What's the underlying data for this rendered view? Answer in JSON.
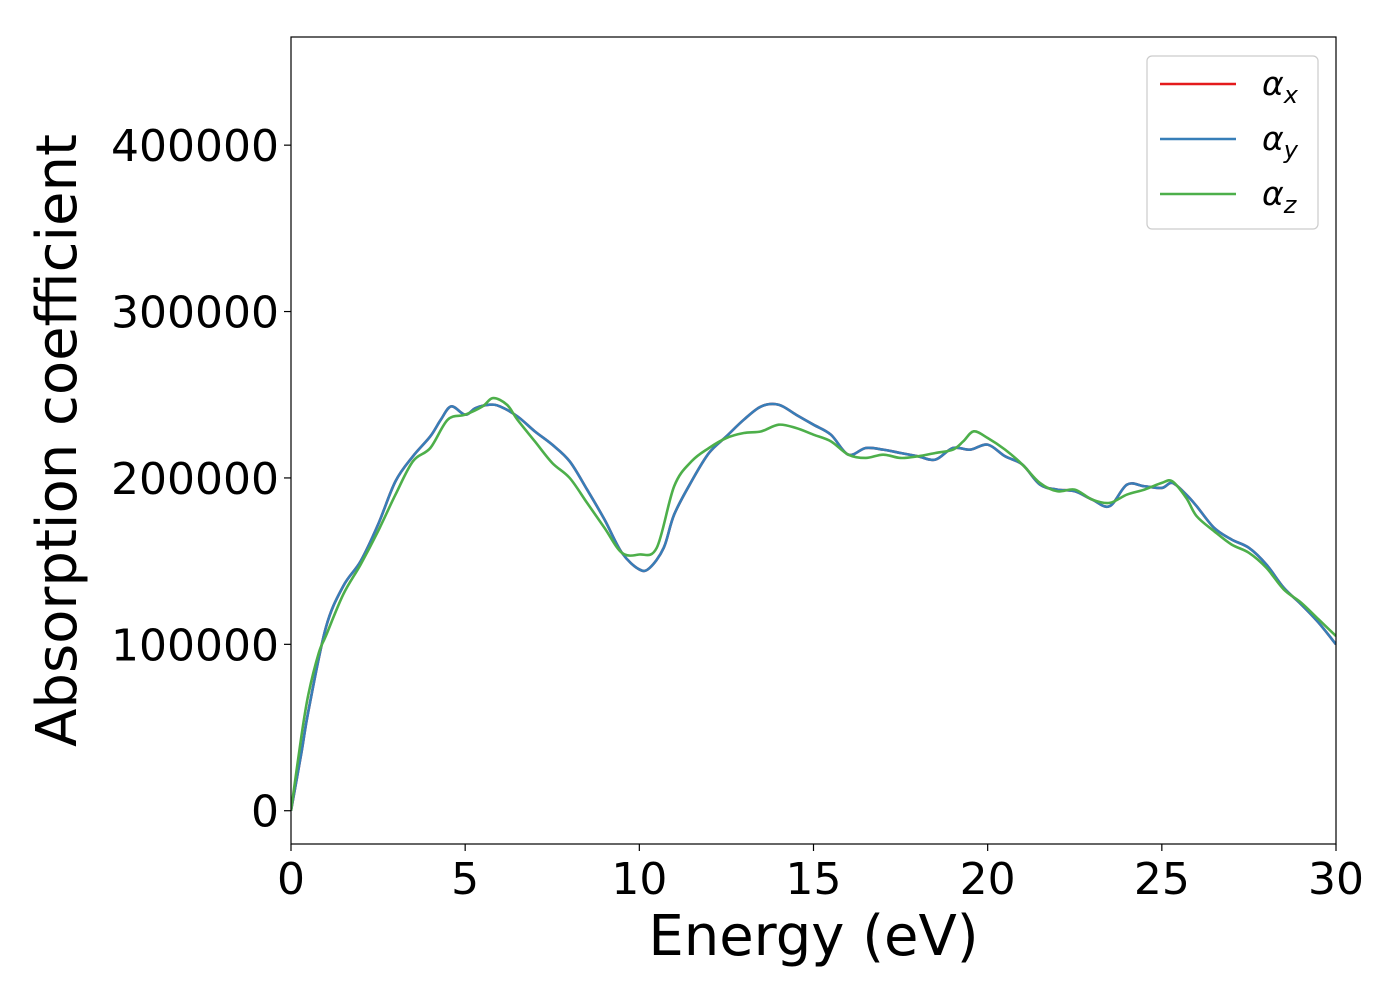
{
  "chart_data": {
    "type": "line",
    "title": "",
    "xlabel": "Energy (eV)",
    "ylabel": "Absorption coefficient",
    "xlim": [
      0,
      30
    ],
    "ylim": [
      -20000,
      465000
    ],
    "xticks": [
      0,
      5,
      10,
      15,
      20,
      25,
      30
    ],
    "yticks": [
      0,
      100000,
      200000,
      300000,
      400000
    ],
    "xtick_labels": [
      "0",
      "5",
      "10",
      "15",
      "20",
      "25",
      "30"
    ],
    "ytick_labels": [
      "0",
      "100000",
      "200000",
      "300000",
      "400000"
    ],
    "grid": false,
    "legend_position": "top-right",
    "series": [
      {
        "name": "αx",
        "symbol": "α",
        "subscript": "x",
        "color": "#e41a1c",
        "x": [
          0,
          0.3,
          0.5,
          1.0,
          1.5,
          2.0,
          2.5,
          3.0,
          3.5,
          4.0,
          4.3,
          4.6,
          5.0,
          5.3,
          5.7,
          6.0,
          6.5,
          7.0,
          7.5,
          8.0,
          8.5,
          9.0,
          9.5,
          10.0,
          10.3,
          10.7,
          11.0,
          11.5,
          12.0,
          12.5,
          13.0,
          13.5,
          14.0,
          14.5,
          15.0,
          15.5,
          16.0,
          16.5,
          17.0,
          17.5,
          18.0,
          18.5,
          19.0,
          19.5,
          20.0,
          20.5,
          21.0,
          21.5,
          22.0,
          22.5,
          23.0,
          23.5,
          24.0,
          24.5,
          25.0,
          25.3,
          25.7,
          26.0,
          26.5,
          27.0,
          27.5,
          28.0,
          28.5,
          29.0,
          29.5,
          30.0
        ],
        "y": [
          0,
          35000,
          60000,
          110000,
          135000,
          150000,
          172000,
          198000,
          213000,
          225000,
          235000,
          243000,
          238000,
          242000,
          244000,
          243000,
          237000,
          228000,
          220000,
          210000,
          193000,
          175000,
          155000,
          145000,
          146000,
          158000,
          178000,
          198000,
          215000,
          225000,
          235000,
          243000,
          244000,
          238000,
          232000,
          226000,
          214000,
          218000,
          217000,
          215000,
          213000,
          211000,
          218000,
          217000,
          220000,
          213000,
          208000,
          196000,
          193000,
          192000,
          187000,
          183000,
          196000,
          195000,
          194000,
          197000,
          190000,
          183000,
          170000,
          163000,
          158000,
          148000,
          134000,
          124000,
          113000,
          100000
        ]
      },
      {
        "name": "αy",
        "symbol": "α",
        "subscript": "y",
        "color": "#377eb8",
        "x": [
          0,
          0.3,
          0.5,
          1.0,
          1.5,
          2.0,
          2.5,
          3.0,
          3.5,
          4.0,
          4.3,
          4.6,
          5.0,
          5.3,
          5.7,
          6.0,
          6.5,
          7.0,
          7.5,
          8.0,
          8.5,
          9.0,
          9.5,
          10.0,
          10.3,
          10.7,
          11.0,
          11.5,
          12.0,
          12.5,
          13.0,
          13.5,
          14.0,
          14.5,
          15.0,
          15.5,
          16.0,
          16.5,
          17.0,
          17.5,
          18.0,
          18.5,
          19.0,
          19.5,
          20.0,
          20.5,
          21.0,
          21.5,
          22.0,
          22.5,
          23.0,
          23.5,
          24.0,
          24.5,
          25.0,
          25.3,
          25.7,
          26.0,
          26.5,
          27.0,
          27.5,
          28.0,
          28.5,
          29.0,
          29.5,
          30.0
        ],
        "y": [
          0,
          35000,
          60000,
          110000,
          135000,
          150000,
          172000,
          198000,
          213000,
          225000,
          235000,
          243000,
          238000,
          242000,
          244000,
          243000,
          237000,
          228000,
          220000,
          210000,
          193000,
          175000,
          155000,
          145000,
          146000,
          158000,
          178000,
          198000,
          215000,
          225000,
          235000,
          243000,
          244000,
          238000,
          232000,
          226000,
          214000,
          218000,
          217000,
          215000,
          213000,
          211000,
          218000,
          217000,
          220000,
          213000,
          208000,
          196000,
          193000,
          192000,
          187000,
          183000,
          196000,
          195000,
          194000,
          197000,
          190000,
          183000,
          170000,
          163000,
          158000,
          148000,
          134000,
          124000,
          113000,
          100000
        ]
      },
      {
        "name": "αz",
        "symbol": "α",
        "subscript": "z",
        "color": "#4daf4a",
        "x": [
          0,
          0.3,
          0.5,
          0.8,
          1.0,
          1.5,
          2.0,
          2.5,
          3.0,
          3.5,
          4.0,
          4.5,
          5.0,
          5.5,
          5.8,
          6.2,
          6.5,
          7.0,
          7.5,
          8.0,
          8.5,
          9.0,
          9.5,
          10.0,
          10.5,
          11.0,
          11.5,
          12.0,
          12.5,
          13.0,
          13.5,
          14.0,
          14.5,
          15.0,
          15.5,
          16.0,
          16.5,
          17.0,
          17.5,
          18.0,
          18.5,
          19.0,
          19.3,
          19.6,
          20.0,
          20.5,
          21.0,
          21.5,
          22.0,
          22.5,
          23.0,
          23.5,
          24.0,
          24.5,
          25.0,
          25.3,
          25.7,
          26.0,
          26.5,
          27.0,
          27.5,
          28.0,
          28.5,
          29.0,
          29.5,
          30.0
        ],
        "y": [
          0,
          45000,
          70000,
          95000,
          105000,
          130000,
          148000,
          168000,
          190000,
          210000,
          218000,
          235000,
          238000,
          243000,
          248000,
          244000,
          235000,
          222000,
          209000,
          200000,
          185000,
          170000,
          155000,
          154000,
          158000,
          195000,
          210000,
          218000,
          224000,
          227000,
          228000,
          232000,
          230000,
          226000,
          222000,
          214000,
          212000,
          214000,
          212000,
          213000,
          215000,
          217000,
          222000,
          228000,
          224000,
          217000,
          208000,
          197000,
          192000,
          193000,
          187000,
          185000,
          190000,
          193000,
          197000,
          198000,
          188000,
          177000,
          168000,
          160000,
          155000,
          146000,
          133000,
          125000,
          115000,
          105000
        ]
      }
    ]
  }
}
